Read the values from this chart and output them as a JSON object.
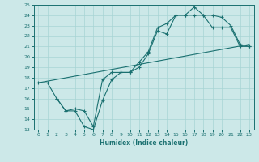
{
  "xlabel": "Humidex (Indice chaleur)",
  "bg_color": "#cce8e8",
  "grid_color": "#a8d4d4",
  "line_color": "#1a7070",
  "xlim": [
    -0.5,
    23.5
  ],
  "ylim": [
    13,
    25
  ],
  "xticks": [
    0,
    1,
    2,
    3,
    4,
    5,
    6,
    7,
    8,
    9,
    10,
    11,
    12,
    13,
    14,
    15,
    16,
    17,
    18,
    19,
    20,
    21,
    22,
    23
  ],
  "yticks": [
    13,
    14,
    15,
    16,
    17,
    18,
    19,
    20,
    21,
    22,
    23,
    24,
    25
  ],
  "line1_x": [
    0,
    1,
    2,
    3,
    4,
    5,
    6,
    7,
    8,
    9,
    10,
    11,
    12,
    13,
    14,
    15,
    16,
    17,
    18,
    19,
    20,
    21,
    22,
    23
  ],
  "line1_y": [
    17.5,
    17.5,
    16.0,
    14.8,
    14.8,
    13.3,
    13.0,
    15.8,
    17.8,
    18.5,
    18.5,
    19.0,
    20.3,
    22.5,
    22.2,
    24.0,
    24.0,
    24.8,
    24.0,
    24.0,
    23.8,
    23.0,
    21.2,
    21.0
  ],
  "line2_x": [
    2,
    3,
    4,
    5,
    6,
    7,
    8,
    9,
    10,
    11,
    12,
    13,
    14,
    15,
    16,
    17,
    18,
    19,
    20,
    21,
    22,
    23
  ],
  "line2_y": [
    16.0,
    14.8,
    15.0,
    14.8,
    13.3,
    17.8,
    18.5,
    18.5,
    18.5,
    19.5,
    20.5,
    22.8,
    23.2,
    24.0,
    24.0,
    24.0,
    24.0,
    22.8,
    22.8,
    22.8,
    21.0,
    21.0
  ],
  "line3_x": [
    0,
    23
  ],
  "line3_y": [
    17.5,
    21.2
  ]
}
